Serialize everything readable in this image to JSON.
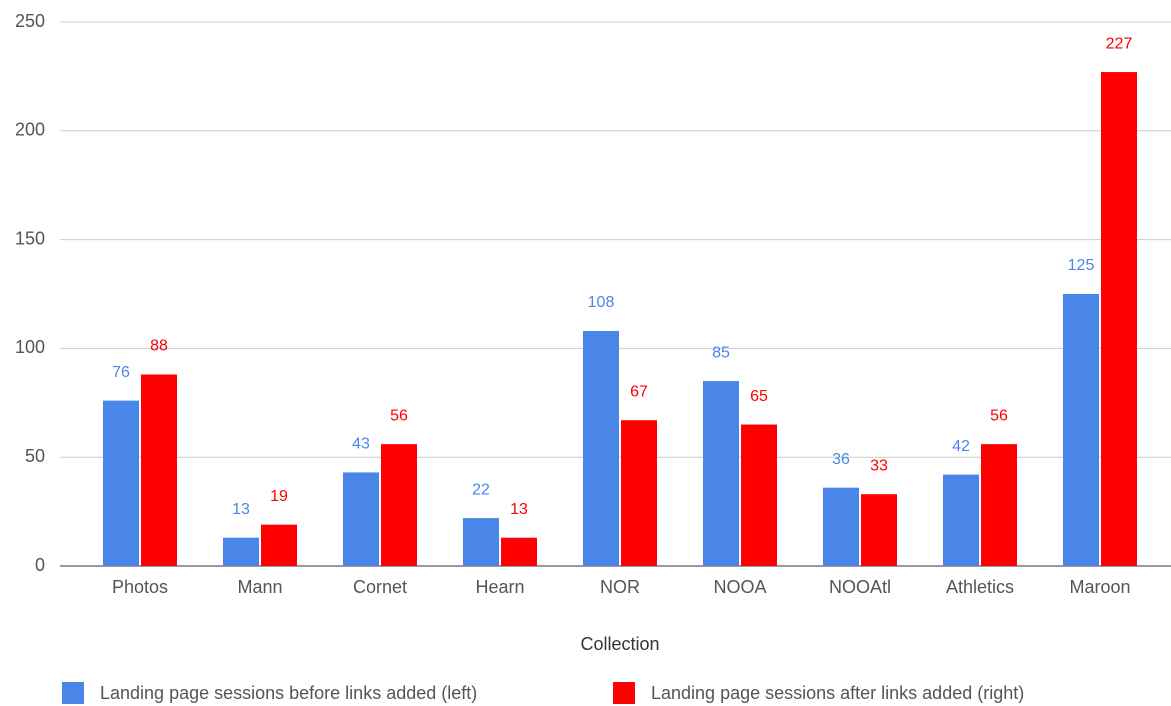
{
  "chart_data": {
    "type": "bar",
    "x_label": "Collection",
    "categories": [
      "Photos",
      "Mann",
      "Cornet",
      "Hearn",
      "NOR",
      "NOOA",
      "NOOAtl",
      "Athletics",
      "Maroon"
    ],
    "series": [
      {
        "name": "Landing page sessions before links added (left)",
        "color": "#4a86e8",
        "values": [
          76,
          13,
          43,
          22,
          108,
          85,
          36,
          42,
          125
        ]
      },
      {
        "name": "Landing page sessions after links added (right)",
        "color": "#ff0000",
        "values": [
          88,
          19,
          56,
          13,
          67,
          65,
          33,
          56,
          227
        ]
      }
    ],
    "ylim": [
      0,
      250
    ],
    "yticks": [
      0,
      50,
      100,
      150,
      200,
      250
    ],
    "grid": true,
    "legend": "bottom"
  }
}
